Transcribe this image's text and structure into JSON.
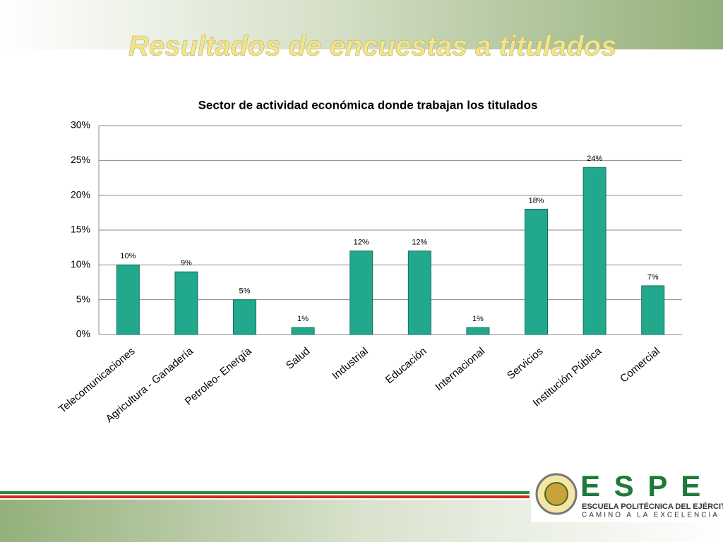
{
  "slide": {
    "title": "Resultados de encuestas a titulados"
  },
  "logo": {
    "name": "E S P E",
    "school": "ESCUELA POLITÉCNICA DEL EJÉRCITO",
    "motto": "CAMINO A LA EXCELENCIA"
  },
  "chart_data": {
    "type": "bar",
    "title": "Sector de actividad económica donde trabajan los titulados",
    "categories": [
      "Telecomunicaciones",
      "Agricultura - Ganadería",
      "Petroleo- Energía",
      "Salud",
      "Industrial",
      "Educación",
      "Internacional",
      "Servicios",
      "Institución Pública",
      "Comercial"
    ],
    "values": [
      10,
      9,
      5,
      1,
      12,
      12,
      1,
      18,
      24,
      7
    ],
    "value_labels": [
      "10%",
      "9%",
      "5%",
      "1%",
      "12%",
      "12%",
      "1%",
      "18%",
      "24%",
      "7%"
    ],
    "color": "#22a88c",
    "ylim": [
      0,
      30
    ],
    "yticks": [
      {
        "value": 0,
        "label": "0%"
      },
      {
        "value": 5,
        "label": "5%"
      },
      {
        "value": 10,
        "label": "10%"
      },
      {
        "value": 15,
        "label": "15%"
      },
      {
        "value": 20,
        "label": "20%"
      },
      {
        "value": 25,
        "label": "25%"
      },
      {
        "value": 30,
        "label": "30%"
      }
    ],
    "grid": true
  }
}
